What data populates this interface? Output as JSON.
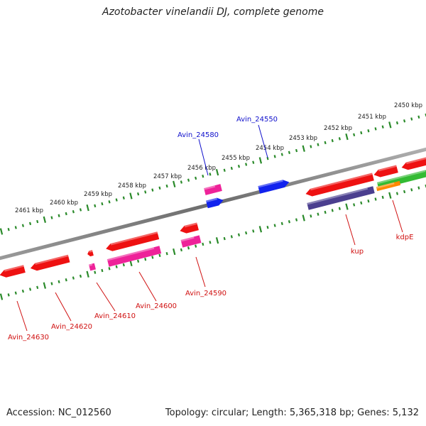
{
  "title": "Azotobacter vinelandii DJ, complete genome",
  "footer": {
    "accession": "Accession: NC_012560",
    "summary": "Topology: circular; Length: 5,365,318 bp; Genes: 5,132"
  },
  "scale": {
    "unit": "kbp",
    "tick_labels": [
      "2450 kbp",
      "2451 kbp",
      "2452 kbp",
      "2453 kbp",
      "2454 kbp",
      "2455 kbp",
      "2456 kbp",
      "2457 kbp",
      "2458 kbp",
      "2459 kbp",
      "2460 kbp",
      "2461 kbp"
    ]
  },
  "gene_labels": [
    {
      "text": "Avin_24550",
      "color": "#1010cc"
    },
    {
      "text": "Avin_24580",
      "color": "#1010cc"
    },
    {
      "text": "kup",
      "color": "#d01010"
    },
    {
      "text": "kdpE",
      "color": "#d01010"
    },
    {
      "text": "Avin_24590",
      "color": "#d01010"
    },
    {
      "text": "Avin_24600",
      "color": "#d01010"
    },
    {
      "text": "Avin_24610",
      "color": "#d01010"
    },
    {
      "text": "Avin_24620",
      "color": "#d01010"
    },
    {
      "text": "Avin_24630",
      "color": "#d01010"
    }
  ],
  "colors": {
    "backbone": "#8a8a8a",
    "ticks": "#2a8a2a",
    "gene_red": "#ee1111",
    "gene_pink": "#ee2299",
    "gene_blue": "#1122ee",
    "gene_purple": "#4b3f8f",
    "gene_green": "#33bb33",
    "gene_orange": "#ff8800"
  }
}
